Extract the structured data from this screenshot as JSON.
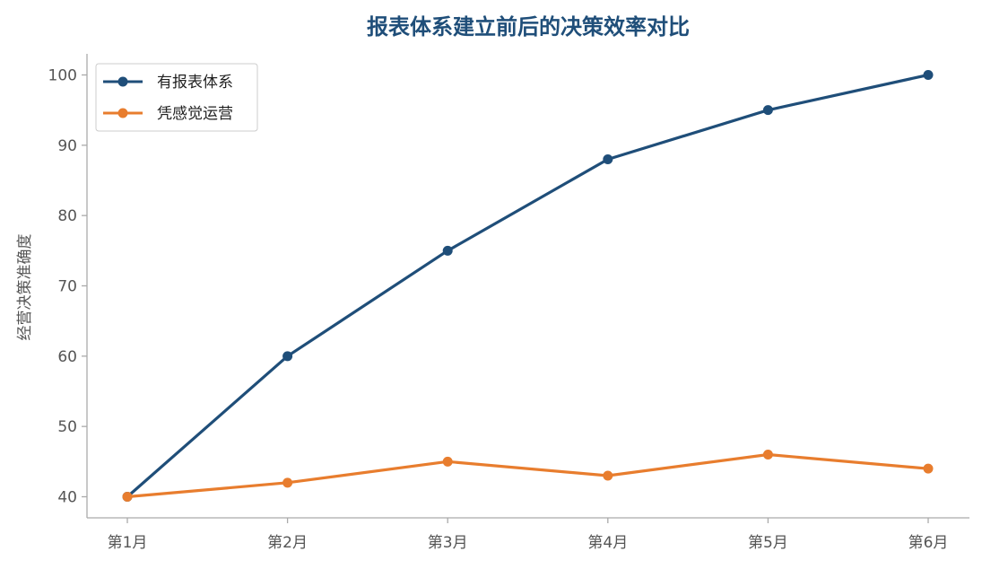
{
  "colors": {
    "series_1": "#1f4e79",
    "series_2": "#e87d2e",
    "axis": "#aaaaaa",
    "tick_text": "#555555",
    "title": "#1f4e79"
  },
  "chart_data": {
    "type": "line",
    "title": "报表体系建立前后的决策效率对比",
    "xlabel": "",
    "ylabel": "经营决策准确度",
    "categories": [
      "第1月",
      "第2月",
      "第3月",
      "第4月",
      "第5月",
      "第6月"
    ],
    "ylim": [
      37,
      103
    ],
    "yticks": [
      40,
      50,
      60,
      70,
      80,
      90,
      100
    ],
    "grid": false,
    "legend_position": "top-left",
    "series": [
      {
        "name": "有报表体系",
        "values": [
          40,
          60,
          75,
          88,
          95,
          100
        ]
      },
      {
        "name": "凭感觉运营",
        "values": [
          40,
          42,
          45,
          43,
          46,
          44
        ]
      }
    ]
  }
}
